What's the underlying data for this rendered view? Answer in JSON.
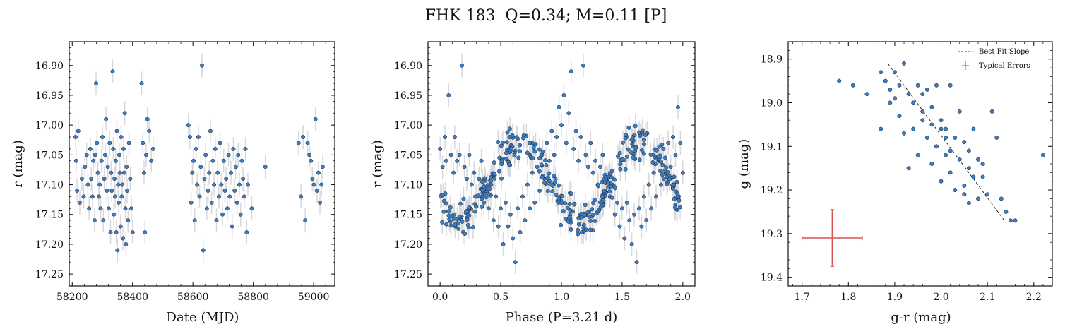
{
  "title": "FHK 183  Q=0.34; M=0.11 [P]",
  "colors": {
    "point": "#3b7dc4",
    "point_edge": "#1a1a1a",
    "errorbar": "#d9d9dc",
    "fit_line": "#111111",
    "typical_error": "#d9534f"
  },
  "chart_data": [
    {
      "type": "scatter",
      "xlabel": "Date (MJD)",
      "ylabel": "r (mag)",
      "xlim": [
        58190,
        59070
      ],
      "ylim": [
        17.27,
        16.86
      ],
      "y_inverted": true,
      "xticks": [
        "58200",
        "58400",
        "58600",
        "58800",
        "59000"
      ],
      "yticks": [
        "16.90",
        "16.95",
        "17.00",
        "17.05",
        "17.10",
        "17.15",
        "17.20",
        "17.25"
      ],
      "typical_yerr": 0.02,
      "points": [
        [
          58211,
          17.02
        ],
        [
          58213,
          17.06
        ],
        [
          58216,
          17.11
        ],
        [
          58220,
          17.01
        ],
        [
          58225,
          17.13
        ],
        [
          58232,
          17.09
        ],
        [
          58238,
          17.12
        ],
        [
          58242,
          17.07
        ],
        [
          58248,
          17.05
        ],
        [
          58252,
          17.1
        ],
        [
          58256,
          17.14
        ],
        [
          58260,
          17.04
        ],
        [
          58263,
          17.09
        ],
        [
          58267,
          17.12
        ],
        [
          58270,
          17.06
        ],
        [
          58274,
          17.16
        ],
        [
          58276,
          17.05
        ],
        [
          58279,
          16.93
        ],
        [
          58282,
          17.03
        ],
        [
          58285,
          17.08
        ],
        [
          58288,
          17.12
        ],
        [
          58291,
          17.1
        ],
        [
          58294,
          17.14
        ],
        [
          58297,
          17.06
        ],
        [
          58300,
          17.02
        ],
        [
          58303,
          17.16
        ],
        [
          58306,
          17.09
        ],
        [
          58309,
          17.05
        ],
        [
          58312,
          16.99
        ],
        [
          58315,
          17.11
        ],
        [
          58318,
          17.07
        ],
        [
          58321,
          17.14
        ],
        [
          58324,
          17.03
        ],
        [
          58327,
          17.18
        ],
        [
          58329,
          17.08
        ],
        [
          58331,
          17.11
        ],
        [
          58334,
          16.91
        ],
        [
          58336,
          17.04
        ],
        [
          58338,
          17.15
        ],
        [
          58340,
          17.09
        ],
        [
          58342,
          17.12
        ],
        [
          58344,
          17.06
        ],
        [
          58346,
          17.18
        ],
        [
          58348,
          17.01
        ],
        [
          58350,
          17.21
        ],
        [
          58352,
          17.1
        ],
        [
          58354,
          17.13
        ],
        [
          58356,
          17.05
        ],
        [
          58358,
          17.08
        ],
        [
          58360,
          17.17
        ],
        [
          58362,
          17.02
        ],
        [
          58364,
          17.12
        ],
        [
          58366,
          17.1
        ],
        [
          58368,
          17.19
        ],
        [
          58370,
          17.04
        ],
        [
          58372,
          17.08
        ],
        [
          58374,
          16.98
        ],
        [
          58376,
          17.14
        ],
        [
          58378,
          17.2
        ],
        [
          58380,
          17.07
        ],
        [
          58382,
          17.11
        ],
        [
          58385,
          17.16
        ],
        [
          58388,
          17.03
        ],
        [
          58392,
          17.09
        ],
        [
          58396,
          17.14
        ],
        [
          58400,
          17.18
        ],
        [
          58430,
          16.93
        ],
        [
          58434,
          17.03
        ],
        [
          58438,
          17.08
        ],
        [
          58441,
          17.18
        ],
        [
          58445,
          17.05
        ],
        [
          58449,
          16.99
        ],
        [
          58455,
          17.01
        ],
        [
          58462,
          17.06
        ],
        [
          58468,
          17.04
        ],
        [
          58585,
          17.0
        ],
        [
          58590,
          17.02
        ],
        [
          58594,
          17.13
        ],
        [
          58598,
          17.08
        ],
        [
          58602,
          17.06
        ],
        [
          58606,
          17.16
        ],
        [
          58610,
          17.04
        ],
        [
          58614,
          17.1
        ],
        [
          58618,
          17.02
        ],
        [
          58622,
          17.12
        ],
        [
          58626,
          17.07
        ],
        [
          58630,
          16.9
        ],
        [
          58634,
          17.21
        ],
        [
          58638,
          17.09
        ],
        [
          58642,
          17.05
        ],
        [
          58646,
          17.14
        ],
        [
          58650,
          17.11
        ],
        [
          58654,
          17.08
        ],
        [
          58658,
          17.01
        ],
        [
          58662,
          17.13
        ],
        [
          58666,
          17.06
        ],
        [
          58670,
          17.1
        ],
        [
          58674,
          17.04
        ],
        [
          58678,
          17.16
        ],
        [
          58682,
          17.08
        ],
        [
          58686,
          17.12
        ],
        [
          58690,
          17.03
        ],
        [
          58694,
          17.1
        ],
        [
          58698,
          17.15
        ],
        [
          58702,
          17.06
        ],
        [
          58706,
          17.11
        ],
        [
          58710,
          17.09
        ],
        [
          58714,
          17.14
        ],
        [
          58718,
          17.05
        ],
        [
          58722,
          17.12
        ],
        [
          58726,
          17.08
        ],
        [
          58730,
          17.17
        ],
        [
          58734,
          17.04
        ],
        [
          58738,
          17.11
        ],
        [
          58742,
          17.07
        ],
        [
          58746,
          17.13
        ],
        [
          58750,
          17.05
        ],
        [
          58754,
          17.1
        ],
        [
          58758,
          17.15
        ],
        [
          58762,
          17.06
        ],
        [
          58766,
          17.09
        ],
        [
          58770,
          17.12
        ],
        [
          58774,
          17.04
        ],
        [
          58778,
          17.18
        ],
        [
          58782,
          17.1
        ],
        [
          58795,
          17.14
        ],
        [
          58840,
          17.07
        ],
        [
          58950,
          17.03
        ],
        [
          58958,
          17.12
        ],
        [
          58965,
          17.02
        ],
        [
          58972,
          17.16
        ],
        [
          58980,
          17.03
        ],
        [
          58986,
          17.05
        ],
        [
          58991,
          17.06
        ],
        [
          58996,
          17.09
        ],
        [
          59001,
          17.1
        ],
        [
          59006,
          16.99
        ],
        [
          59011,
          17.11
        ],
        [
          59016,
          17.08
        ],
        [
          59021,
          17.13
        ],
        [
          59026,
          17.1
        ],
        [
          59030,
          17.07
        ]
      ]
    },
    {
      "type": "scatter",
      "xlabel": "Phase (P=3.21 d)",
      "ylabel": "r (mag)",
      "xlim": [
        -0.1,
        2.1
      ],
      "ylim": [
        17.27,
        16.86
      ],
      "y_inverted": true,
      "period_days": 3.21,
      "xticks": [
        "0.0",
        "0.5",
        "1.0",
        "1.5",
        "2.0"
      ],
      "yticks": [
        "16.90",
        "16.95",
        "17.00",
        "17.05",
        "17.10",
        "17.15",
        "17.20",
        "17.25"
      ],
      "typical_yerr": 0.02,
      "model": {
        "mean": 17.095,
        "amplitude": 0.065,
        "min_phase": 0.1,
        "harmonics": 2,
        "scatter": 0.03
      },
      "points": [
        [
          0.0,
          17.04
        ],
        [
          0.02,
          17.07
        ],
        [
          0.04,
          17.02
        ],
        [
          0.05,
          17.06
        ],
        [
          0.07,
          16.95
        ],
        [
          0.09,
          17.05
        ],
        [
          0.11,
          17.08
        ],
        [
          0.12,
          17.02
        ],
        [
          0.14,
          17.06
        ],
        [
          0.16,
          17.05
        ],
        [
          0.18,
          16.9
        ],
        [
          0.2,
          17.07
        ],
        [
          0.22,
          17.09
        ],
        [
          0.24,
          17.05
        ],
        [
          0.26,
          17.1
        ],
        [
          0.28,
          17.08
        ],
        [
          0.3,
          17.12
        ],
        [
          0.32,
          17.09
        ],
        [
          0.34,
          17.06
        ],
        [
          0.36,
          17.13
        ],
        [
          0.38,
          17.11
        ],
        [
          0.4,
          17.14
        ],
        [
          0.42,
          17.1
        ],
        [
          0.44,
          17.16
        ],
        [
          0.46,
          17.12
        ],
        [
          0.48,
          17.17
        ],
        [
          0.5,
          17.14
        ],
        [
          0.52,
          17.2
        ],
        [
          0.54,
          17.13
        ],
        [
          0.56,
          17.17
        ],
        [
          0.58,
          17.15
        ],
        [
          0.6,
          17.19
        ],
        [
          0.62,
          17.23
        ],
        [
          0.64,
          17.14
        ],
        [
          0.66,
          17.18
        ],
        [
          0.68,
          17.12
        ],
        [
          0.7,
          17.16
        ],
        [
          0.72,
          17.1
        ],
        [
          0.74,
          17.14
        ],
        [
          0.76,
          17.08
        ],
        [
          0.78,
          17.13
        ],
        [
          0.8,
          17.07
        ],
        [
          0.82,
          17.11
        ],
        [
          0.84,
          17.05
        ],
        [
          0.86,
          17.09
        ],
        [
          0.88,
          17.03
        ],
        [
          0.9,
          17.06
        ],
        [
          0.92,
          17.01
        ],
        [
          0.94,
          17.05
        ],
        [
          0.96,
          17.02
        ],
        [
          0.98,
          16.97
        ],
        [
          1.0,
          17.0
        ],
        [
          1.02,
          16.95
        ],
        [
          1.04,
          17.03
        ],
        [
          1.06,
          16.98
        ],
        [
          1.08,
          16.91
        ],
        [
          1.1,
          17.04
        ],
        [
          1.12,
          17.01
        ],
        [
          1.14,
          17.06
        ],
        [
          1.16,
          17.02
        ],
        [
          1.18,
          16.9
        ],
        [
          1.2,
          17.05
        ],
        [
          1.22,
          17.07
        ],
        [
          1.24,
          17.03
        ],
        [
          1.26,
          17.08
        ],
        [
          1.28,
          17.06
        ],
        [
          1.3,
          17.1
        ],
        [
          1.32,
          17.07
        ],
        [
          1.34,
          17.05
        ],
        [
          1.36,
          17.11
        ],
        [
          1.38,
          17.09
        ],
        [
          1.4,
          17.12
        ],
        [
          1.42,
          17.1
        ],
        [
          1.44,
          17.15
        ],
        [
          1.46,
          17.13
        ],
        [
          1.48,
          17.17
        ],
        [
          1.5,
          17.14
        ],
        [
          1.52,
          17.19
        ],
        [
          1.54,
          17.13
        ],
        [
          1.56,
          17.16
        ],
        [
          1.58,
          17.2
        ],
        [
          1.6,
          17.15
        ],
        [
          1.62,
          17.23
        ],
        [
          1.64,
          17.14
        ],
        [
          1.66,
          17.17
        ],
        [
          1.68,
          17.12
        ],
        [
          1.7,
          17.16
        ],
        [
          1.72,
          17.1
        ],
        [
          1.74,
          17.14
        ],
        [
          1.76,
          17.08
        ],
        [
          1.78,
          17.12
        ],
        [
          1.8,
          17.06
        ],
        [
          1.82,
          17.1
        ],
        [
          1.84,
          17.04
        ],
        [
          1.86,
          17.08
        ],
        [
          1.88,
          17.03
        ],
        [
          1.9,
          17.07
        ],
        [
          1.92,
          17.02
        ],
        [
          1.94,
          17.05
        ],
        [
          1.96,
          16.97
        ],
        [
          1.98,
          17.03
        ],
        [
          2.0,
          17.08
        ]
      ]
    },
    {
      "type": "scatter",
      "xlabel": "g-r (mag)",
      "ylabel": "g (mag)",
      "xlim": [
        1.67,
        2.24
      ],
      "ylim": [
        19.42,
        18.86
      ],
      "y_inverted": true,
      "xticks": [
        "1.7",
        "1.8",
        "1.9",
        "2.0",
        "2.1",
        "2.2"
      ],
      "yticks": [
        "18.9",
        "19.0",
        "19.1",
        "19.2",
        "19.3",
        "19.4"
      ],
      "legend": {
        "position": "top-right",
        "entries": [
          "Best Fit Slope",
          "Typical Errors"
        ]
      },
      "fit_line": [
        [
          1.885,
          18.91
        ],
        [
          2.14,
          19.275
        ]
      ],
      "typical_error": {
        "x": 1.765,
        "y": 19.31,
        "xerr": 0.065,
        "yerr": 0.065
      },
      "points": [
        [
          1.78,
          18.95
        ],
        [
          1.81,
          18.96
        ],
        [
          1.84,
          18.98
        ],
        [
          1.87,
          18.93
        ],
        [
          1.88,
          18.95
        ],
        [
          1.89,
          18.97
        ],
        [
          1.9,
          18.93
        ],
        [
          1.91,
          18.96
        ],
        [
          1.92,
          18.91
        ],
        [
          1.93,
          18.98
        ],
        [
          1.94,
          19.0
        ],
        [
          1.95,
          18.96
        ],
        [
          1.96,
          19.02
        ],
        [
          1.97,
          18.97
        ],
        [
          1.98,
          19.01
        ],
        [
          1.99,
          18.96
        ],
        [
          2.0,
          19.04
        ],
        [
          2.01,
          19.06
        ],
        [
          2.02,
          18.96
        ],
        [
          2.03,
          19.08
        ],
        [
          2.04,
          19.02
        ],
        [
          2.05,
          19.09
        ],
        [
          2.06,
          19.11
        ],
        [
          2.07,
          19.06
        ],
        [
          2.08,
          19.13
        ],
        [
          2.09,
          19.17
        ],
        [
          2.1,
          19.21
        ],
        [
          2.11,
          19.02
        ],
        [
          2.12,
          19.08
        ],
        [
          2.14,
          19.25
        ],
        [
          2.15,
          19.27
        ],
        [
          2.16,
          19.27
        ],
        [
          2.22,
          19.12
        ],
        [
          1.87,
          19.06
        ],
        [
          1.89,
          19.0
        ],
        [
          1.91,
          19.03
        ],
        [
          1.92,
          19.07
        ],
        [
          1.93,
          19.15
        ],
        [
          1.94,
          19.06
        ],
        [
          1.95,
          19.12
        ],
        [
          1.96,
          19.04
        ],
        [
          1.97,
          19.08
        ],
        [
          1.98,
          19.14
        ],
        [
          1.99,
          19.1
        ],
        [
          2.0,
          19.18
        ],
        [
          2.01,
          19.12
        ],
        [
          2.02,
          19.16
        ],
        [
          2.03,
          19.2
        ],
        [
          2.04,
          19.13
        ],
        [
          2.05,
          19.19
        ],
        [
          2.06,
          19.23
        ],
        [
          2.07,
          19.17
        ],
        [
          2.08,
          19.22
        ],
        [
          2.0,
          19.06
        ],
        [
          2.02,
          19.11
        ],
        [
          2.06,
          19.15
        ],
        [
          1.96,
          18.98
        ],
        [
          1.98,
          19.05
        ],
        [
          2.01,
          19.08
        ],
        [
          2.05,
          19.21
        ],
        [
          2.09,
          19.14
        ],
        [
          1.9,
          18.99
        ],
        [
          2.13,
          19.22
        ]
      ]
    }
  ]
}
